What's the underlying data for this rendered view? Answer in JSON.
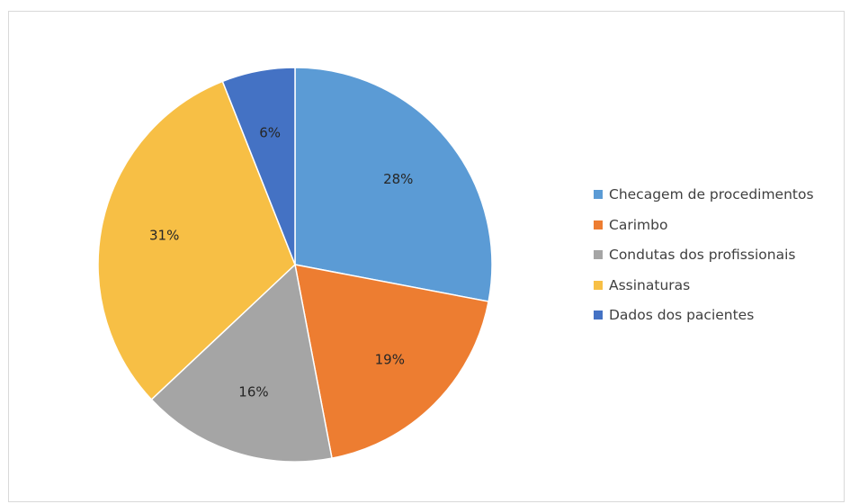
{
  "chart_data": {
    "type": "pie",
    "title": "",
    "legend_position": "right",
    "start_angle_deg": 0,
    "direction": "clockwise",
    "slices": [
      {
        "name": "Checagem de procedimentos",
        "value": 28,
        "label": "28%",
        "color": "#5B9BD5"
      },
      {
        "name": "Carimbo",
        "value": 19,
        "label": "19%",
        "color": "#ED7D31"
      },
      {
        "name": "Condutas dos profissionais",
        "value": 16,
        "label": "16%",
        "color": "#A5A5A5"
      },
      {
        "name": "Assinaturas",
        "value": 31,
        "label": "31%",
        "color": "#F7BF45"
      },
      {
        "name": "Dados dos pacientes",
        "value": 6,
        "label": "6%",
        "color": "#4472C4"
      }
    ]
  }
}
